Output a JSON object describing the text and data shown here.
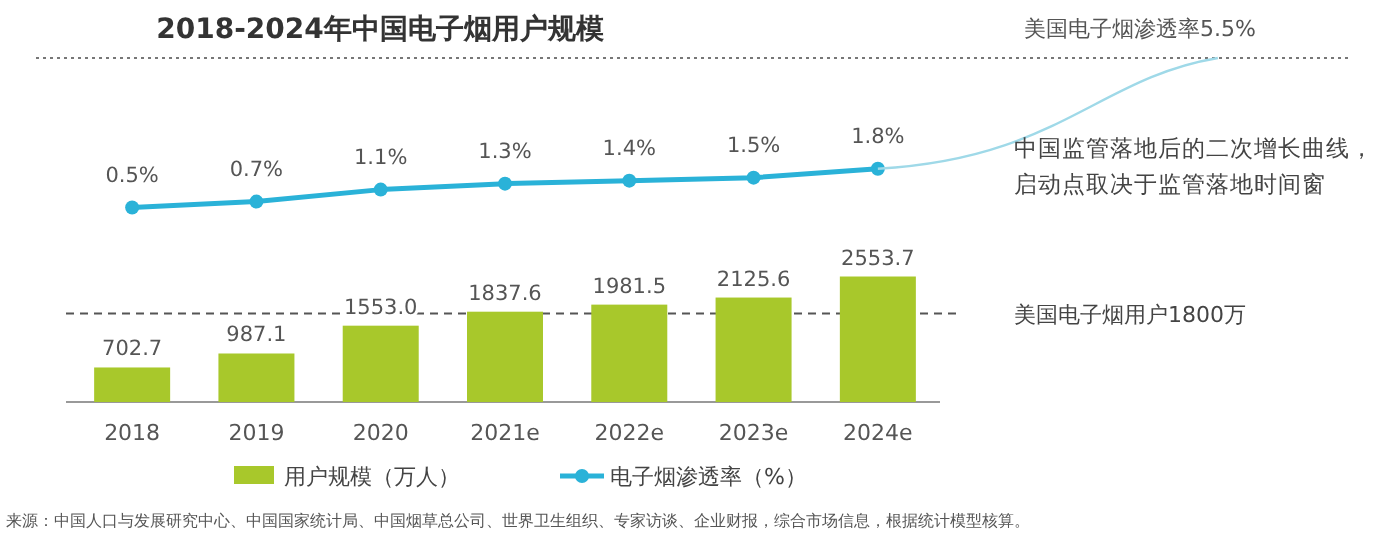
{
  "chart_data": {
    "type": "bar",
    "title": "2018-2024年中国电子烟用户规模",
    "categories": [
      "2018",
      "2019",
      "2020",
      "2021e",
      "2022e",
      "2023e",
      "2024e"
    ],
    "series": [
      {
        "name": "用户规模（万人）",
        "color": "#a8c82b",
        "values": [
          702.7,
          987.1,
          1553.0,
          1837.6,
          1981.5,
          2125.6,
          2553.7
        ],
        "value_labels": [
          "702.7",
          "987.1",
          "1553.0",
          "1837.6",
          "1981.5",
          "2125.6",
          "2553.7"
        ]
      },
      {
        "name": "电子烟渗透率（%）",
        "type": "line",
        "axis": "y2",
        "marker": "circle",
        "color": "#2ab2d8",
        "values": [
          0.5,
          0.7,
          1.1,
          1.3,
          1.4,
          1.5,
          1.8
        ],
        "value_labels": [
          "0.5%",
          "0.7%",
          "1.1%",
          "1.3%",
          "1.4%",
          "1.5%",
          "1.8%"
        ]
      }
    ],
    "ylim": [
      0,
      7000
    ],
    "y2lim": [
      -6,
      5.5
    ],
    "tick_labels": "x",
    "legend": "bottom",
    "ref_lines": [
      {
        "axis": "y",
        "value": 1800,
        "label": "美国电子烟用户1800万",
        "line_style": "dashed",
        "color": "#555555"
      },
      {
        "axis": "y2",
        "value": 5.5,
        "label": "美国电子烟渗透率5.5%",
        "line_style": "dotted",
        "color": "#777777"
      }
    ],
    "annotations": [
      "中国监管落地后的二次增长曲线，启动点取决于监管落地时间窗",
      "来源：中国人口与发展研究中心、中国国家统计局、中国烟草总公司、世界卫生组织、专家访谈、企业财报，综合市场信息，根据统计模型核算。"
    ]
  }
}
